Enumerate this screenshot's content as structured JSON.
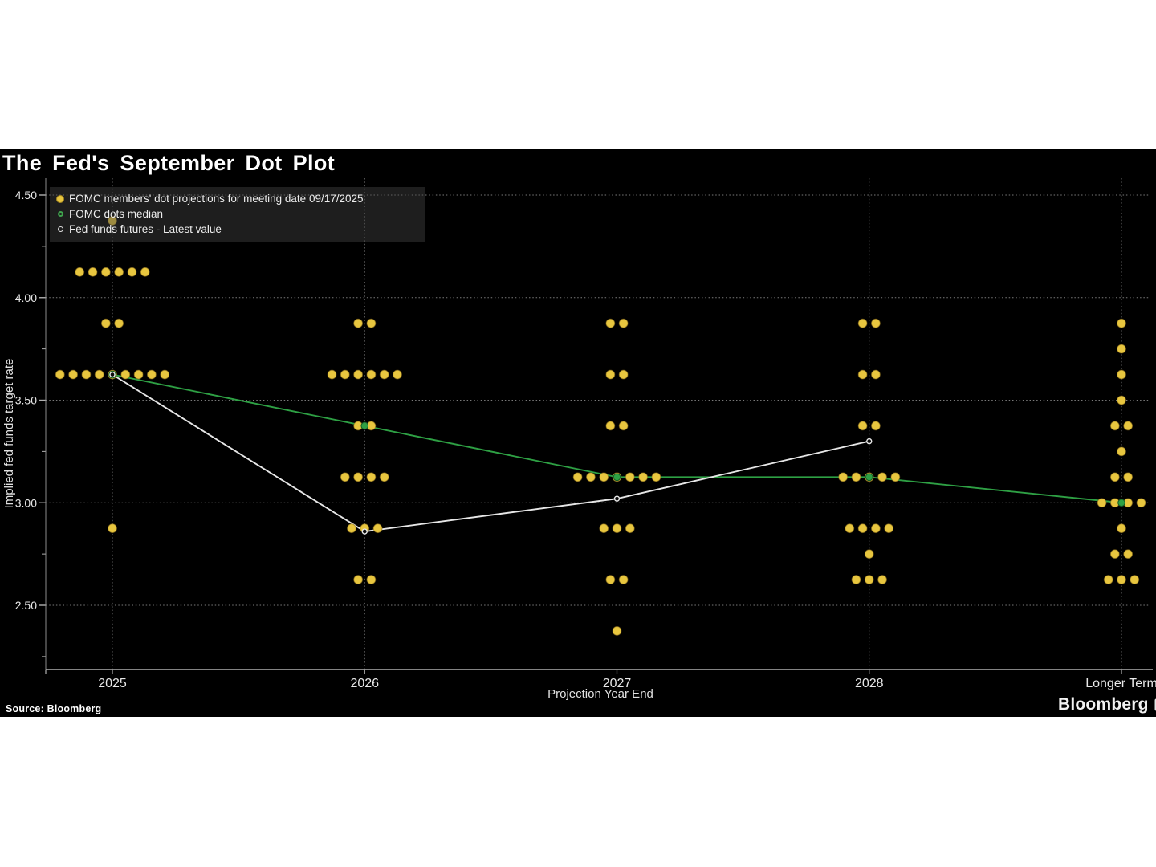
{
  "title": "The Fed's September Dot Plot",
  "source_note": "Source: Bloomberg",
  "brand": "Bloomberg",
  "legend": {
    "items": [
      {
        "label": "FOMC members' dot projections for meeting date 09/17/2025",
        "marker": "filled-yellow-dot",
        "color": "#e8c63f"
      },
      {
        "label": "FOMC dots median",
        "marker": "open-green-circle",
        "color": "#3fa34d"
      },
      {
        "label": "Fed funds futures - Latest value",
        "marker": "open-white-circle",
        "color": "#dddddd"
      }
    ]
  },
  "colors": {
    "background": "#000000",
    "page": "#ffffff",
    "dot_yellow": "#e8c63f",
    "median_green": "#2ea044",
    "futures_white": "#e6e6e6",
    "grid": "#7a7a7a",
    "axis": "#b0b0b0",
    "text": "#e8e8e8"
  },
  "chart_data": {
    "type": "scatter",
    "title": "The Fed's September Dot Plot",
    "xlabel": "Projection Year End",
    "ylabel": "Implied fed funds target rate",
    "categories": [
      "2025",
      "2026",
      "2027",
      "2028",
      "Longer Term"
    ],
    "y_ticks": [
      {
        "v": 4.5,
        "t": "4.50"
      },
      {
        "v": 4.0,
        "t": "4.00"
      },
      {
        "v": 3.5,
        "t": "3.50"
      },
      {
        "v": 3.0,
        "t": "3.00"
      },
      {
        "v": 2.5,
        "t": "2.50"
      }
    ],
    "y_minor_ticks": [
      4.25,
      3.75,
      3.25,
      2.75,
      2.25
    ],
    "ylim": [
      2.19,
      4.58
    ],
    "grid": "dotted",
    "legend_position": "top-left",
    "dots": [
      {
        "category": "2025",
        "points": [
          {
            "rate": 4.375,
            "count": 1
          },
          {
            "rate": 4.125,
            "count": 6
          },
          {
            "rate": 3.875,
            "count": 2
          },
          {
            "rate": 3.625,
            "count": 9
          },
          {
            "rate": 2.875,
            "count": 1
          }
        ]
      },
      {
        "category": "2026",
        "points": [
          {
            "rate": 3.875,
            "count": 2
          },
          {
            "rate": 3.625,
            "count": 6
          },
          {
            "rate": 3.375,
            "count": 2
          },
          {
            "rate": 3.125,
            "count": 4
          },
          {
            "rate": 2.875,
            "count": 3
          },
          {
            "rate": 2.625,
            "count": 2
          }
        ]
      },
      {
        "category": "2027",
        "points": [
          {
            "rate": 3.875,
            "count": 2
          },
          {
            "rate": 3.625,
            "count": 2
          },
          {
            "rate": 3.375,
            "count": 2
          },
          {
            "rate": 3.125,
            "count": 7
          },
          {
            "rate": 2.875,
            "count": 3
          },
          {
            "rate": 2.625,
            "count": 2
          },
          {
            "rate": 2.375,
            "count": 1
          }
        ]
      },
      {
        "category": "2028",
        "points": [
          {
            "rate": 3.875,
            "count": 2
          },
          {
            "rate": 3.625,
            "count": 2
          },
          {
            "rate": 3.375,
            "count": 2
          },
          {
            "rate": 3.125,
            "count": 5
          },
          {
            "rate": 2.875,
            "count": 4
          },
          {
            "rate": 2.75,
            "count": 1
          },
          {
            "rate": 2.625,
            "count": 3
          }
        ]
      },
      {
        "category": "Longer Term",
        "points": [
          {
            "rate": 3.875,
            "count": 1
          },
          {
            "rate": 3.75,
            "count": 1
          },
          {
            "rate": 3.625,
            "count": 1
          },
          {
            "rate": 3.5,
            "count": 1
          },
          {
            "rate": 3.375,
            "count": 2
          },
          {
            "rate": 3.25,
            "count": 1
          },
          {
            "rate": 3.125,
            "count": 2
          },
          {
            "rate": 3.0,
            "count": 4
          },
          {
            "rate": 2.875,
            "count": 1
          },
          {
            "rate": 2.75,
            "count": 2
          },
          {
            "rate": 2.625,
            "count": 3
          }
        ]
      }
    ],
    "series": [
      {
        "name": "FOMC dots median",
        "type": "line",
        "color": "#2ea044",
        "marker": "filled-green-circle",
        "values": [
          3.625,
          3.375,
          3.125,
          3.125,
          3.0
        ]
      },
      {
        "name": "Fed funds futures - Latest value",
        "type": "line",
        "color": "#e6e6e6",
        "marker": "open-white-circle",
        "values": [
          3.625,
          2.86,
          3.02,
          3.3,
          null
        ]
      }
    ]
  }
}
